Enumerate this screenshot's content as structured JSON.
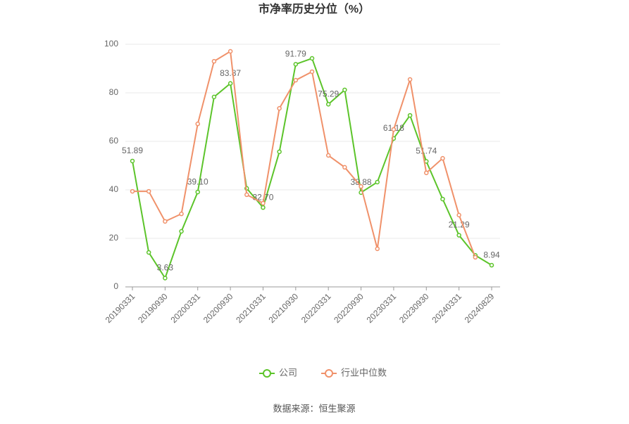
{
  "chart_data": {
    "type": "line",
    "title": "市净率历史分位（%）",
    "categories": [
      "20190331",
      null,
      "20190930",
      null,
      "20200331",
      null,
      "20200930",
      null,
      "20210331",
      null,
      "20210930",
      null,
      "20220331",
      null,
      "20220930",
      null,
      "20230331",
      null,
      "20230930",
      null,
      "20240331",
      null,
      "20240829"
    ],
    "series": [
      {
        "name": "公司",
        "color": "#5cc42a",
        "values": [
          51.89,
          14.2,
          3.63,
          22.9,
          39.1,
          78.3,
          83.87,
          40.6,
          32.7,
          55.7,
          91.79,
          94.2,
          75.29,
          81.2,
          38.88,
          43.2,
          61.18,
          70.7,
          51.74,
          36.2,
          21.29,
          13.0,
          8.94
        ],
        "value_labels": [
          "51.89",
          null,
          "3.63",
          null,
          "39.10",
          null,
          "83.87",
          null,
          "32.70",
          null,
          "91.79",
          null,
          "75.29",
          null,
          "38.88",
          null,
          "61.18",
          null,
          "51.74",
          null,
          "21.29",
          null,
          "8.94"
        ]
      },
      {
        "name": "行业中位数",
        "color": "#f0916a",
        "values": [
          39.4,
          39.4,
          27.0,
          30.1,
          67.2,
          93.0,
          97.1,
          38.0,
          34.5,
          73.6,
          85.2,
          88.7,
          54.2,
          49.3,
          41.4,
          15.7,
          64.9,
          85.5,
          47.0,
          53.0,
          29.6,
          12.2,
          null
        ]
      }
    ],
    "ylim": [
      0,
      100
    ],
    "yticks": [
      0,
      20,
      40,
      60,
      80,
      100
    ],
    "grid": true,
    "legend": "bottom",
    "source": "数据来源：恒生聚源"
  }
}
